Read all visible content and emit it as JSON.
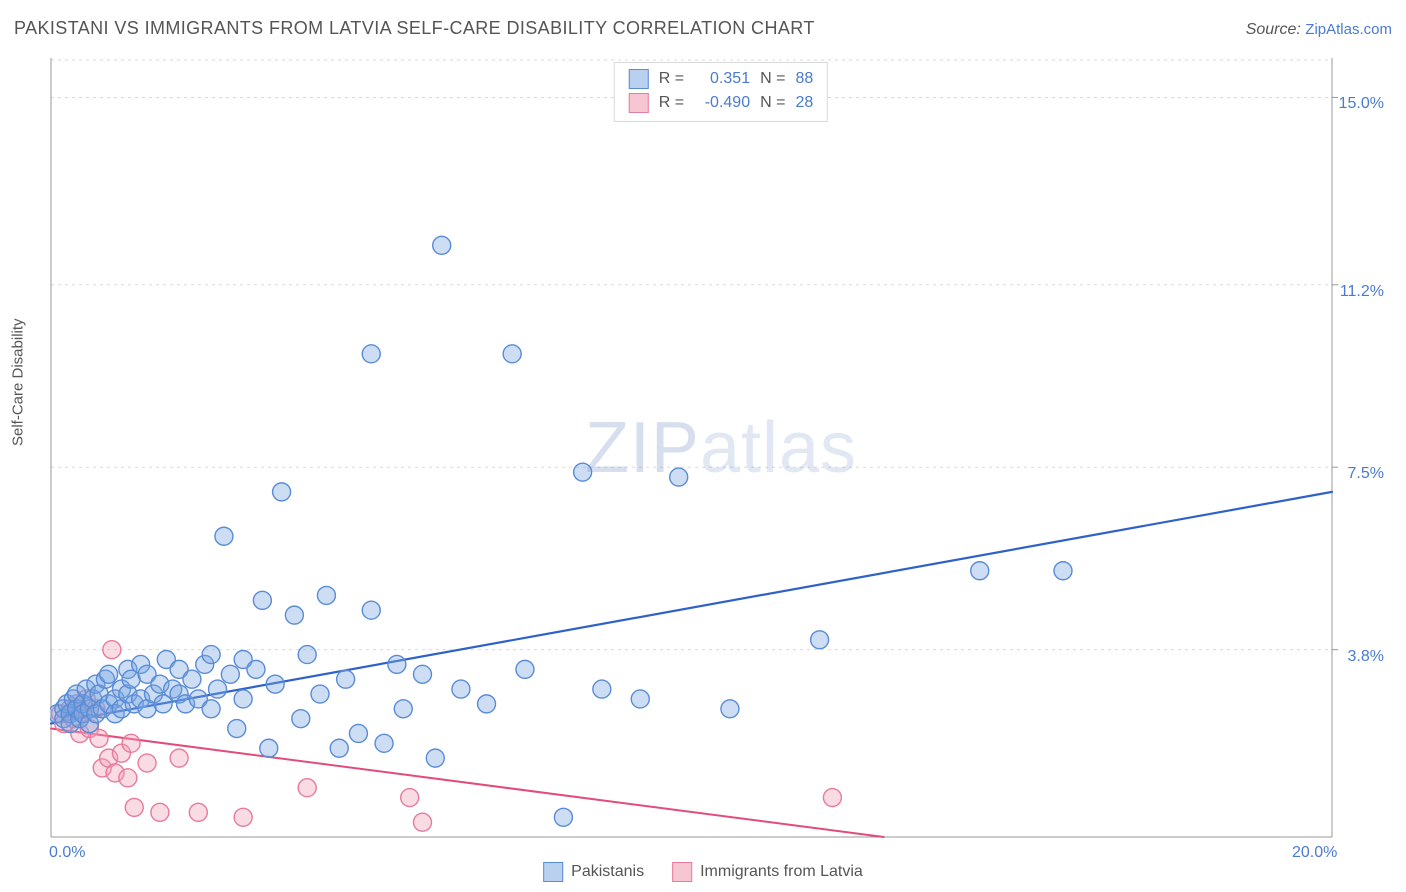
{
  "header": {
    "title": "PAKISTANI VS IMMIGRANTS FROM LATVIA SELF-CARE DISABILITY CORRELATION CHART",
    "source_prefix": "Source: ",
    "source_link": "ZipAtlas.com"
  },
  "axes": {
    "y_label": "Self-Care Disability",
    "x_min": 0.0,
    "x_max": 20.0,
    "y_min": 0.0,
    "y_max": 15.8,
    "x_ticks": [
      {
        "v": 0.0,
        "label": "0.0%"
      },
      {
        "v": 20.0,
        "label": "20.0%"
      }
    ],
    "y_ticks": [
      {
        "v": 3.8,
        "label": "3.8%"
      },
      {
        "v": 7.5,
        "label": "7.5%"
      },
      {
        "v": 11.2,
        "label": "11.2%"
      },
      {
        "v": 15.0,
        "label": "15.0%"
      }
    ],
    "grid_color": "#d9d9d9",
    "axis_color": "#9a9a9a"
  },
  "watermark": {
    "bold": "ZIP",
    "rest": "atlas"
  },
  "legend_top": {
    "rows": [
      {
        "swatch_fill": "#b9d0ee",
        "swatch_stroke": "#5a8cd6",
        "r_label": "R =",
        "r_value": "0.351",
        "n_label": "N =",
        "n_value": "88"
      },
      {
        "swatch_fill": "#f6c7d2",
        "swatch_stroke": "#e77b9b",
        "r_label": "R =",
        "r_value": "-0.490",
        "n_label": "N =",
        "n_value": "28"
      }
    ]
  },
  "legend_bottom": {
    "items": [
      {
        "swatch_fill": "#b9d0ee",
        "swatch_stroke": "#5a8cd6",
        "label": "Pakistanis"
      },
      {
        "swatch_fill": "#f6c7d2",
        "swatch_stroke": "#e77b9b",
        "label": "Immigrants from Latvia"
      }
    ]
  },
  "series_blue": {
    "fill": "rgba(120,165,225,0.38)",
    "stroke": "#5a8cd6",
    "stroke_width": 1.4,
    "radius": 9,
    "trend": {
      "x1": 0.0,
      "y1": 2.3,
      "x2": 20.0,
      "y2": 7.0,
      "color": "#2f62c9",
      "width": 2.2
    },
    "points": [
      [
        0.1,
        2.5
      ],
      [
        0.2,
        2.6
      ],
      [
        0.2,
        2.4
      ],
      [
        0.25,
        2.7
      ],
      [
        0.3,
        2.5
      ],
      [
        0.3,
        2.3
      ],
      [
        0.35,
        2.8
      ],
      [
        0.4,
        2.6
      ],
      [
        0.4,
        2.9
      ],
      [
        0.45,
        2.4
      ],
      [
        0.5,
        2.7
      ],
      [
        0.5,
        2.5
      ],
      [
        0.55,
        3.0
      ],
      [
        0.6,
        2.6
      ],
      [
        0.6,
        2.3
      ],
      [
        0.65,
        2.8
      ],
      [
        0.7,
        2.5
      ],
      [
        0.7,
        3.1
      ],
      [
        0.75,
        2.9
      ],
      [
        0.8,
        2.6
      ],
      [
        0.85,
        3.2
      ],
      [
        0.9,
        2.7
      ],
      [
        0.9,
        3.3
      ],
      [
        1.0,
        2.8
      ],
      [
        1.0,
        2.5
      ],
      [
        1.1,
        3.0
      ],
      [
        1.1,
        2.6
      ],
      [
        1.2,
        3.4
      ],
      [
        1.2,
        2.9
      ],
      [
        1.25,
        3.2
      ],
      [
        1.3,
        2.7
      ],
      [
        1.4,
        3.5
      ],
      [
        1.4,
        2.8
      ],
      [
        1.5,
        2.6
      ],
      [
        1.5,
        3.3
      ],
      [
        1.6,
        2.9
      ],
      [
        1.7,
        3.1
      ],
      [
        1.75,
        2.7
      ],
      [
        1.8,
        3.6
      ],
      [
        1.9,
        3.0
      ],
      [
        2.0,
        2.9
      ],
      [
        2.0,
        3.4
      ],
      [
        2.1,
        2.7
      ],
      [
        2.2,
        3.2
      ],
      [
        2.3,
        2.8
      ],
      [
        2.4,
        3.5
      ],
      [
        2.5,
        2.6
      ],
      [
        2.5,
        3.7
      ],
      [
        2.6,
        3.0
      ],
      [
        2.7,
        6.1
      ],
      [
        2.8,
        3.3
      ],
      [
        2.9,
        2.2
      ],
      [
        3.0,
        3.6
      ],
      [
        3.0,
        2.8
      ],
      [
        3.2,
        3.4
      ],
      [
        3.3,
        4.8
      ],
      [
        3.4,
        1.8
      ],
      [
        3.5,
        3.1
      ],
      [
        3.6,
        7.0
      ],
      [
        3.8,
        4.5
      ],
      [
        3.9,
        2.4
      ],
      [
        4.0,
        3.7
      ],
      [
        4.2,
        2.9
      ],
      [
        4.3,
        4.9
      ],
      [
        4.5,
        1.8
      ],
      [
        4.6,
        3.2
      ],
      [
        4.8,
        2.1
      ],
      [
        5.0,
        4.6
      ],
      [
        5.0,
        9.8
      ],
      [
        5.2,
        1.9
      ],
      [
        5.4,
        3.5
      ],
      [
        5.5,
        2.6
      ],
      [
        5.8,
        3.3
      ],
      [
        6.0,
        1.6
      ],
      [
        6.1,
        12.0
      ],
      [
        6.4,
        3.0
      ],
      [
        6.8,
        2.7
      ],
      [
        7.2,
        9.8
      ],
      [
        7.4,
        3.4
      ],
      [
        8.0,
        0.4
      ],
      [
        8.3,
        7.4
      ],
      [
        8.6,
        3.0
      ],
      [
        9.2,
        2.8
      ],
      [
        9.8,
        7.3
      ],
      [
        10.6,
        2.6
      ],
      [
        12.0,
        4.0
      ],
      [
        14.5,
        5.4
      ],
      [
        15.8,
        5.4
      ]
    ]
  },
  "series_pink": {
    "fill": "rgba(240,160,185,0.38)",
    "stroke": "#e77b9b",
    "stroke_width": 1.4,
    "radius": 9,
    "trend": {
      "x1": 0.0,
      "y1": 2.2,
      "x2": 13.0,
      "y2": 0.0,
      "color": "#e04d7a",
      "width": 2.0
    },
    "points": [
      [
        0.15,
        2.5
      ],
      [
        0.2,
        2.3
      ],
      [
        0.3,
        2.6
      ],
      [
        0.35,
        2.4
      ],
      [
        0.4,
        2.7
      ],
      [
        0.45,
        2.1
      ],
      [
        0.5,
        2.5
      ],
      [
        0.55,
        2.8
      ],
      [
        0.6,
        2.2
      ],
      [
        0.7,
        2.6
      ],
      [
        0.75,
        2.0
      ],
      [
        0.8,
        1.4
      ],
      [
        0.9,
        1.6
      ],
      [
        0.95,
        3.8
      ],
      [
        1.0,
        1.3
      ],
      [
        1.1,
        1.7
      ],
      [
        1.2,
        1.2
      ],
      [
        1.25,
        1.9
      ],
      [
        1.3,
        0.6
      ],
      [
        1.5,
        1.5
      ],
      [
        1.7,
        0.5
      ],
      [
        2.0,
        1.6
      ],
      [
        2.3,
        0.5
      ],
      [
        3.0,
        0.4
      ],
      [
        4.0,
        1.0
      ],
      [
        5.6,
        0.8
      ],
      [
        5.8,
        0.3
      ],
      [
        12.2,
        0.8
      ]
    ]
  },
  "colors": {
    "background": "#ffffff",
    "text": "#555555",
    "link": "#4a7bd0"
  }
}
